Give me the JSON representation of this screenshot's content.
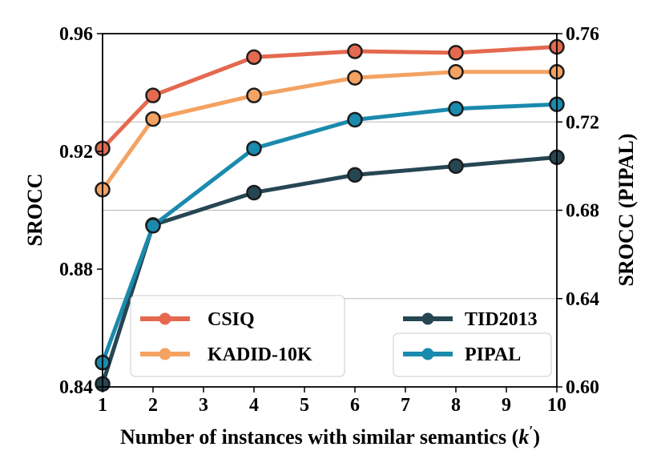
{
  "chart_data": {
    "type": "line",
    "x": [
      1,
      2,
      4,
      6,
      8,
      10
    ],
    "xlabel": "Number of instances with similar semantics (",
    "xlabel_symbol": "k",
    "xlabel_prime": "′",
    "xlabel_close": ")",
    "ylabel": "SROCC",
    "ylabel_right": "SROCC (PIPAL)",
    "xlim": [
      1,
      10
    ],
    "ylim": [
      0.84,
      0.96
    ],
    "ylim_right": [
      0.6,
      0.76
    ],
    "xticks": [
      "1",
      "2",
      "3",
      "4",
      "5",
      "6",
      "7",
      "8",
      "9",
      "10"
    ],
    "yticks": [
      "0.84",
      "0.88",
      "0.92",
      "0.96"
    ],
    "yticks_right": [
      "0.60",
      "0.64",
      "0.68",
      "0.72",
      "0.76"
    ],
    "grid": "horizontal-right-axis",
    "legend_placement": "bottom",
    "series": [
      {
        "name": "CSIQ",
        "axis": "left",
        "color": "#e4694f",
        "values": [
          0.921,
          0.939,
          0.952,
          0.954,
          0.9535,
          0.9555
        ]
      },
      {
        "name": "TID2013",
        "axis": "left",
        "color": "#264653",
        "values": [
          0.841,
          0.895,
          0.906,
          0.912,
          0.915,
          0.918
        ]
      },
      {
        "name": "KADID-10K",
        "axis": "left",
        "color": "#f4a261",
        "values": [
          0.907,
          0.931,
          0.939,
          0.945,
          0.947,
          0.947
        ]
      },
      {
        "name": "PIPAL",
        "axis": "right",
        "color": "#1a8aad",
        "values": [
          0.611,
          0.673,
          0.708,
          0.721,
          0.726,
          0.728
        ]
      }
    ]
  }
}
